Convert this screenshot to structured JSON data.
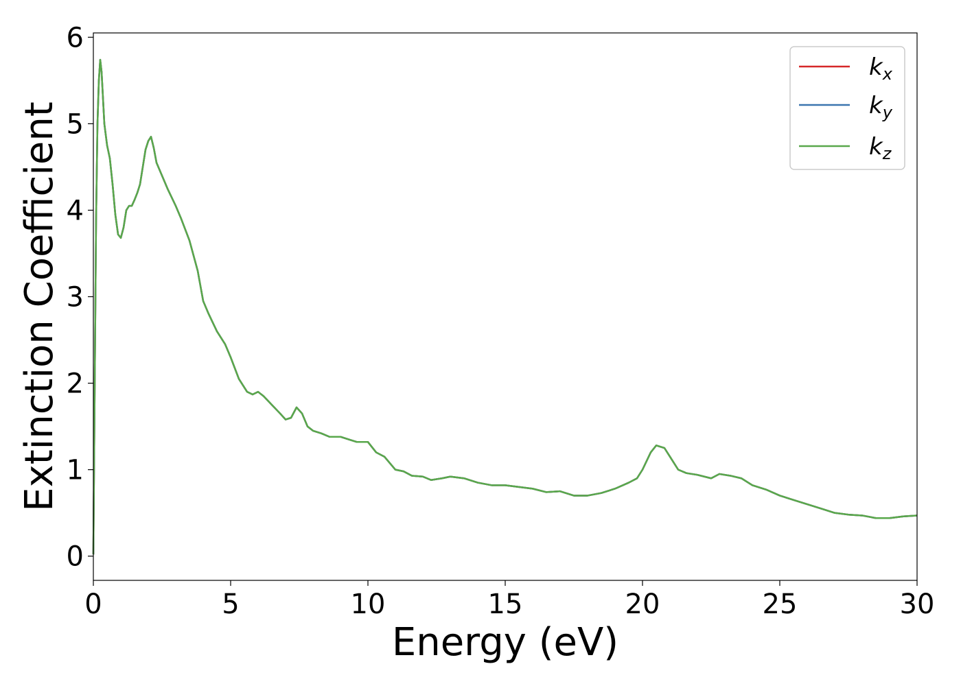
{
  "chart_data": {
    "type": "line",
    "title": "",
    "xlabel": "Energy (eV)",
    "ylabel": "Extinction Coefficient",
    "xlim": [
      0,
      30
    ],
    "ylim": [
      -0.28,
      6.05
    ],
    "xticks": [
      0,
      5,
      10,
      15,
      20,
      25,
      30
    ],
    "yticks": [
      0,
      1,
      2,
      3,
      4,
      5,
      6
    ],
    "grid": false,
    "legend_position": "top-right",
    "series": [
      {
        "name": "k",
        "subscript": "x",
        "color": "#d62728",
        "x": [
          0,
          0.05,
          0.1,
          0.15,
          0.2,
          0.25,
          0.3,
          0.35,
          0.4,
          0.5,
          0.6,
          0.7,
          0.8,
          0.9,
          1.0,
          1.1,
          1.2,
          1.3,
          1.4,
          1.5,
          1.6,
          1.7,
          1.8,
          1.9,
          2.0,
          2.1,
          2.2,
          2.3,
          2.5,
          2.7,
          3.0,
          3.2,
          3.5,
          3.8,
          4.0,
          4.2,
          4.5,
          4.8,
          5.0,
          5.3,
          5.6,
          5.8,
          6.0,
          6.2,
          6.5,
          6.8,
          7.0,
          7.2,
          7.4,
          7.6,
          7.8,
          8.0,
          8.3,
          8.6,
          9.0,
          9.3,
          9.6,
          10.0,
          10.3,
          10.6,
          11.0,
          11.3,
          11.6,
          12.0,
          12.3,
          12.7,
          13.0,
          13.5,
          14.0,
          14.5,
          15.0,
          15.5,
          16.0,
          16.5,
          17.0,
          17.5,
          18.0,
          18.5,
          19.0,
          19.5,
          19.8,
          20.0,
          20.3,
          20.5,
          20.8,
          21.0,
          21.3,
          21.6,
          22.0,
          22.5,
          22.8,
          23.2,
          23.6,
          24.0,
          24.5,
          25.0,
          25.5,
          26.0,
          26.5,
          27.0,
          27.5,
          28.0,
          28.5,
          29.0,
          29.5,
          30.0
        ],
        "values": [
          0.02,
          2.0,
          3.9,
          5.0,
          5.5,
          5.74,
          5.6,
          5.3,
          5.0,
          4.75,
          4.6,
          4.3,
          3.95,
          3.72,
          3.68,
          3.8,
          4.0,
          4.05,
          4.05,
          4.12,
          4.2,
          4.3,
          4.5,
          4.7,
          4.8,
          4.85,
          4.72,
          4.55,
          4.4,
          4.25,
          4.05,
          3.9,
          3.65,
          3.3,
          2.95,
          2.8,
          2.6,
          2.45,
          2.3,
          2.05,
          1.9,
          1.87,
          1.9,
          1.85,
          1.75,
          1.65,
          1.58,
          1.6,
          1.72,
          1.65,
          1.5,
          1.45,
          1.42,
          1.38,
          1.38,
          1.35,
          1.32,
          1.32,
          1.2,
          1.15,
          1.0,
          0.98,
          0.93,
          0.92,
          0.88,
          0.9,
          0.92,
          0.9,
          0.85,
          0.82,
          0.82,
          0.8,
          0.78,
          0.74,
          0.75,
          0.7,
          0.7,
          0.73,
          0.78,
          0.85,
          0.9,
          1.0,
          1.2,
          1.28,
          1.25,
          1.15,
          1.0,
          0.96,
          0.94,
          0.9,
          0.95,
          0.93,
          0.9,
          0.82,
          0.77,
          0.7,
          0.65,
          0.6,
          0.55,
          0.5,
          0.48,
          0.47,
          0.44,
          0.44,
          0.46,
          0.47
        ]
      },
      {
        "name": "k",
        "subscript": "y",
        "color": "#3b75af",
        "x": [
          0,
          0.05,
          0.1,
          0.15,
          0.2,
          0.25,
          0.3,
          0.35,
          0.4,
          0.5,
          0.6,
          0.7,
          0.8,
          0.9,
          1.0,
          1.1,
          1.2,
          1.3,
          1.4,
          1.5,
          1.6,
          1.7,
          1.8,
          1.9,
          2.0,
          2.1,
          2.2,
          2.3,
          2.5,
          2.7,
          3.0,
          3.2,
          3.5,
          3.8,
          4.0,
          4.2,
          4.5,
          4.8,
          5.0,
          5.3,
          5.6,
          5.8,
          6.0,
          6.2,
          6.5,
          6.8,
          7.0,
          7.2,
          7.4,
          7.6,
          7.8,
          8.0,
          8.3,
          8.6,
          9.0,
          9.3,
          9.6,
          10.0,
          10.3,
          10.6,
          11.0,
          11.3,
          11.6,
          12.0,
          12.3,
          12.7,
          13.0,
          13.5,
          14.0,
          14.5,
          15.0,
          15.5,
          16.0,
          16.5,
          17.0,
          17.5,
          18.0,
          18.5,
          19.0,
          19.5,
          19.8,
          20.0,
          20.3,
          20.5,
          20.8,
          21.0,
          21.3,
          21.6,
          22.0,
          22.5,
          22.8,
          23.2,
          23.6,
          24.0,
          24.5,
          25.0,
          25.5,
          26.0,
          26.5,
          27.0,
          27.5,
          28.0,
          28.5,
          29.0,
          29.5,
          30.0
        ],
        "values": [
          0.02,
          2.0,
          3.9,
          5.0,
          5.5,
          5.74,
          5.6,
          5.3,
          5.0,
          4.75,
          4.6,
          4.3,
          3.95,
          3.72,
          3.68,
          3.8,
          4.0,
          4.05,
          4.05,
          4.12,
          4.2,
          4.3,
          4.5,
          4.7,
          4.8,
          4.85,
          4.72,
          4.55,
          4.4,
          4.25,
          4.05,
          3.9,
          3.65,
          3.3,
          2.95,
          2.8,
          2.6,
          2.45,
          2.3,
          2.05,
          1.9,
          1.87,
          1.9,
          1.85,
          1.75,
          1.65,
          1.58,
          1.6,
          1.72,
          1.65,
          1.5,
          1.45,
          1.42,
          1.38,
          1.38,
          1.35,
          1.32,
          1.32,
          1.2,
          1.15,
          1.0,
          0.98,
          0.93,
          0.92,
          0.88,
          0.9,
          0.92,
          0.9,
          0.85,
          0.82,
          0.82,
          0.8,
          0.78,
          0.74,
          0.75,
          0.7,
          0.7,
          0.73,
          0.78,
          0.85,
          0.9,
          1.0,
          1.2,
          1.28,
          1.25,
          1.15,
          1.0,
          0.96,
          0.94,
          0.9,
          0.95,
          0.93,
          0.9,
          0.82,
          0.77,
          0.7,
          0.65,
          0.6,
          0.55,
          0.5,
          0.48,
          0.47,
          0.44,
          0.44,
          0.46,
          0.47
        ]
      },
      {
        "name": "k",
        "subscript": "z",
        "color": "#59a84b",
        "x": [
          0,
          0.05,
          0.1,
          0.15,
          0.2,
          0.25,
          0.3,
          0.35,
          0.4,
          0.5,
          0.6,
          0.7,
          0.8,
          0.9,
          1.0,
          1.1,
          1.2,
          1.3,
          1.4,
          1.5,
          1.6,
          1.7,
          1.8,
          1.9,
          2.0,
          2.1,
          2.2,
          2.3,
          2.5,
          2.7,
          3.0,
          3.2,
          3.5,
          3.8,
          4.0,
          4.2,
          4.5,
          4.8,
          5.0,
          5.3,
          5.6,
          5.8,
          6.0,
          6.2,
          6.5,
          6.8,
          7.0,
          7.2,
          7.4,
          7.6,
          7.8,
          8.0,
          8.3,
          8.6,
          9.0,
          9.3,
          9.6,
          10.0,
          10.3,
          10.6,
          11.0,
          11.3,
          11.6,
          12.0,
          12.3,
          12.7,
          13.0,
          13.5,
          14.0,
          14.5,
          15.0,
          15.5,
          16.0,
          16.5,
          17.0,
          17.5,
          18.0,
          18.5,
          19.0,
          19.5,
          19.8,
          20.0,
          20.3,
          20.5,
          20.8,
          21.0,
          21.3,
          21.6,
          22.0,
          22.5,
          22.8,
          23.2,
          23.6,
          24.0,
          24.5,
          25.0,
          25.5,
          26.0,
          26.5,
          27.0,
          27.5,
          28.0,
          28.5,
          29.0,
          29.5,
          30.0
        ],
        "values": [
          0.02,
          2.0,
          3.9,
          5.0,
          5.5,
          5.74,
          5.6,
          5.3,
          5.0,
          4.75,
          4.6,
          4.3,
          3.95,
          3.72,
          3.68,
          3.8,
          4.0,
          4.05,
          4.05,
          4.12,
          4.2,
          4.3,
          4.5,
          4.7,
          4.8,
          4.85,
          4.72,
          4.55,
          4.4,
          4.25,
          4.05,
          3.9,
          3.65,
          3.3,
          2.95,
          2.8,
          2.6,
          2.45,
          2.3,
          2.05,
          1.9,
          1.87,
          1.9,
          1.85,
          1.75,
          1.65,
          1.58,
          1.6,
          1.72,
          1.65,
          1.5,
          1.45,
          1.42,
          1.38,
          1.38,
          1.35,
          1.32,
          1.32,
          1.2,
          1.15,
          1.0,
          0.98,
          0.93,
          0.92,
          0.88,
          0.9,
          0.92,
          0.9,
          0.85,
          0.82,
          0.82,
          0.8,
          0.78,
          0.74,
          0.75,
          0.7,
          0.7,
          0.73,
          0.78,
          0.85,
          0.9,
          1.0,
          1.2,
          1.28,
          1.25,
          1.15,
          1.0,
          0.96,
          0.94,
          0.9,
          0.95,
          0.93,
          0.9,
          0.82,
          0.77,
          0.7,
          0.65,
          0.6,
          0.55,
          0.5,
          0.48,
          0.47,
          0.44,
          0.44,
          0.46,
          0.47
        ]
      }
    ]
  }
}
